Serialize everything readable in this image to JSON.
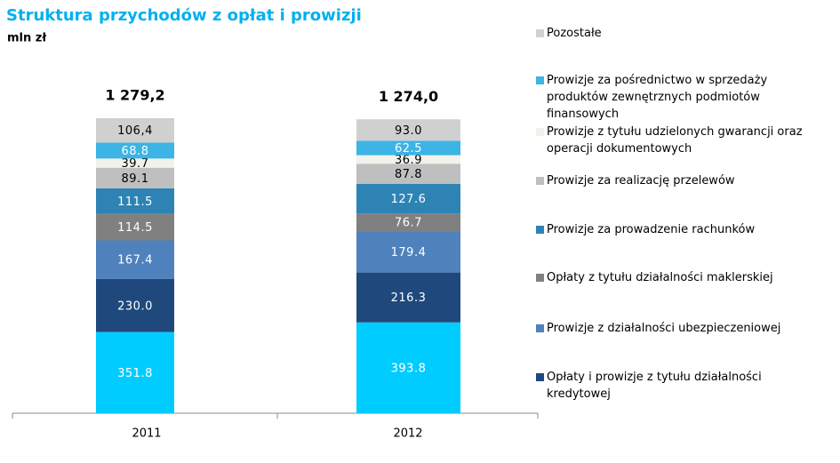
{
  "chart_data": {
    "type": "bar",
    "stacked": true,
    "title": "Struktura przychodów z opłat i prowizji",
    "subtitle": "mln zł",
    "categories": [
      "2011",
      "2012"
    ],
    "totals": [
      1279.2,
      1274.0
    ],
    "total_labels": [
      "1 279,2",
      "1 274,0"
    ],
    "series": [
      {
        "color": "#00ccff",
        "values": [
          351.8,
          393.8
        ],
        "value_labels": [
          "351.8",
          "393.8"
        ]
      },
      {
        "name": "Opłaty i prowizje z tytułu działalności kredytowej",
        "color": "#1f497d",
        "values": [
          230.0,
          216.3
        ],
        "value_labels": [
          "230.0",
          "216.3"
        ]
      },
      {
        "name": "Prowizje z działalności ubezpieczeniowej",
        "color": "#4f81bd",
        "values": [
          167.4,
          179.4
        ],
        "value_labels": [
          "167.4",
          "179.4"
        ]
      },
      {
        "name": "Opłaty z tytułu działalności maklerskiej",
        "color": "#808080",
        "values": [
          114.5,
          76.7
        ],
        "value_labels": [
          "114.5",
          "76.7"
        ]
      },
      {
        "name": "Prowizje za prowadzenie rachunków",
        "color": "#2e83b5",
        "values": [
          111.5,
          127.6
        ],
        "value_labels": [
          "111.5",
          "127.6"
        ]
      },
      {
        "name": "Prowizje za realizację przelewów",
        "color": "#bfbfbf",
        "values": [
          89.1,
          87.8
        ],
        "value_labels": [
          "89.1",
          "87.8"
        ]
      },
      {
        "name": "Prowizje z tytułu udzielonych gwarancji oraz operacji dokumentowych",
        "color": "#f2f2ec",
        "values": [
          39.7,
          36.9
        ],
        "value_labels": [
          "39.7",
          "36.9"
        ]
      },
      {
        "name": "Prowizje za pośrednictwo w sprzedaży produktów zewnętrznych podmiotów finansowych",
        "color": "#3cb4e5",
        "values": [
          68.8,
          62.5
        ],
        "value_labels": [
          "68.8",
          "62.5"
        ]
      },
      {
        "name": "Pozostałe",
        "color": "#d0d0d0",
        "values": [
          106.4,
          93.0
        ],
        "value_labels": [
          "106,4",
          "93.0"
        ]
      }
    ]
  }
}
